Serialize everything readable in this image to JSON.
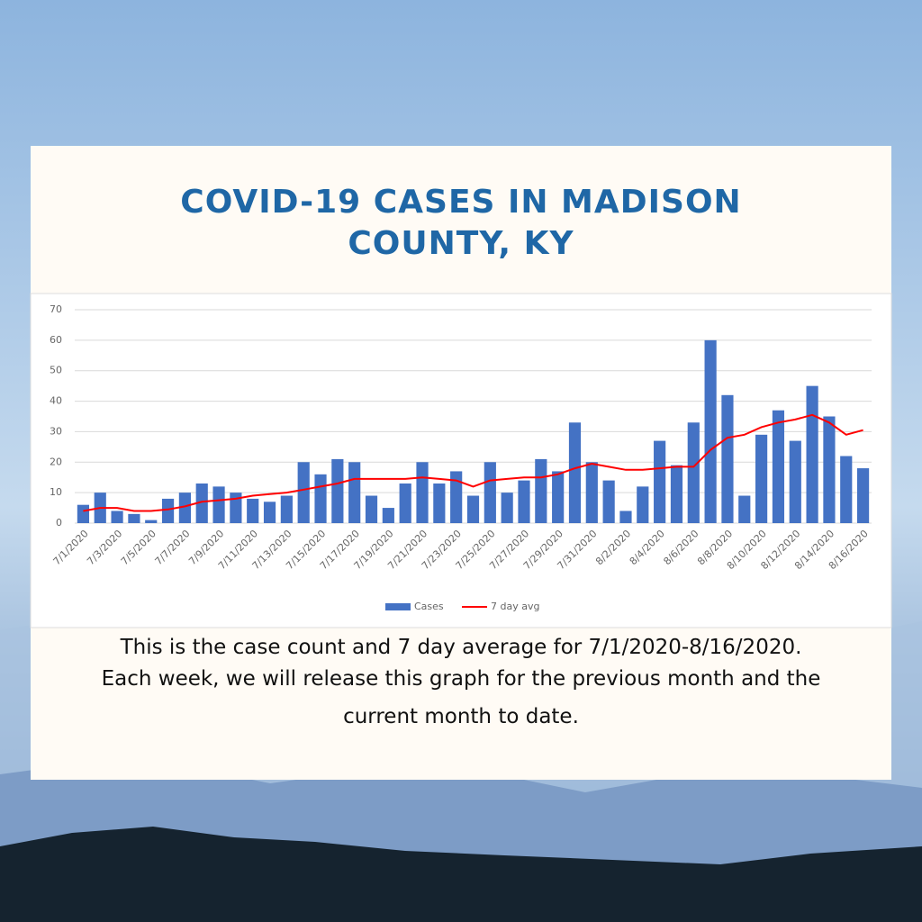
{
  "chart_data": {
    "type": "bar_line",
    "title": "COVID-19 CASES IN MADISON COUNTY, KY",
    "caption": [
      "This is the case count and 7 day average for 7/1/2020-8/16/2020.",
      "Each week, we will release this graph for the previous month and the",
      "current month to date."
    ],
    "categories": [
      "7/1/2020",
      null,
      "7/3/2020",
      null,
      "7/5/2020",
      null,
      "7/7/2020",
      null,
      "7/9/2020",
      null,
      "7/11/2020",
      null,
      "7/13/2020",
      null,
      "7/15/2020",
      null,
      "7/17/2020",
      null,
      "7/19/2020",
      null,
      "7/21/2020",
      null,
      "7/23/2020",
      null,
      "7/25/2020",
      null,
      "7/27/2020",
      null,
      "7/29/2020",
      null,
      "7/31/2020",
      null,
      "8/2/2020",
      null,
      "8/4/2020",
      null,
      "8/6/2020",
      null,
      "8/8/2020",
      null,
      "8/10/2020",
      null,
      "8/12/2020",
      null,
      "8/14/2020",
      null,
      "8/16/2020"
    ],
    "series": [
      {
        "name": "Cases",
        "type": "bar",
        "color": "#4472c4",
        "values": [
          6,
          10,
          4,
          3,
          1,
          8,
          10,
          13,
          12,
          10,
          8,
          7,
          9,
          20,
          16,
          21,
          20,
          9,
          5,
          13,
          20,
          13,
          17,
          9,
          20,
          10,
          14,
          21,
          17,
          33,
          20,
          14,
          4,
          12,
          27,
          19,
          33,
          60,
          42,
          9,
          29,
          37,
          27,
          45,
          35,
          22,
          18
        ]
      },
      {
        "name": "7 day avg",
        "type": "line",
        "color": "#ff0000",
        "values": [
          4,
          5,
          5,
          4,
          4,
          4.5,
          5.5,
          7,
          7.5,
          8,
          9,
          9.5,
          10,
          11,
          12,
          13,
          14.5,
          14.5,
          14.5,
          14.5,
          15,
          14.5,
          14,
          12,
          14,
          14.5,
          15,
          15,
          16,
          18,
          19.5,
          18.5,
          17.5,
          17.5,
          18,
          18.5,
          18.5,
          24,
          28,
          29,
          31.5,
          33,
          34,
          35.5,
          33,
          29,
          30.5
        ]
      }
    ],
    "ylim": [
      0,
      70
    ],
    "yticks": [
      0,
      10,
      20,
      30,
      40,
      50,
      60,
      70
    ],
    "grid": true,
    "legend": "bottom"
  }
}
